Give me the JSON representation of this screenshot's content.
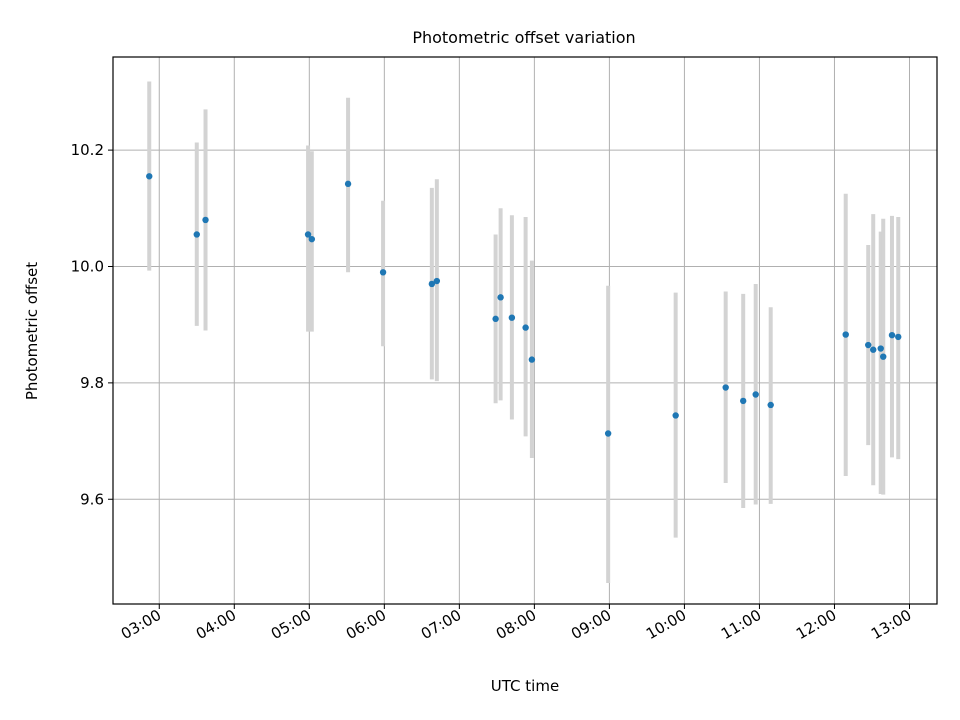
{
  "chart_data": {
    "type": "scatter",
    "title": "Photometric offset variation",
    "xlabel": "UTC time",
    "ylabel": "Photometric offset",
    "x_ticks": [
      "03:00",
      "04:00",
      "05:00",
      "06:00",
      "07:00",
      "08:00",
      "09:00",
      "10:00",
      "11:00",
      "12:00",
      "13:00"
    ],
    "y_ticks": [
      "9.6",
      "9.8",
      "10.0",
      "10.2"
    ],
    "xlim": [
      "02:23",
      "13:22"
    ],
    "ylim": [
      9.42,
      10.36
    ],
    "grid": true,
    "colors": {
      "point": "#1f77b4",
      "errorbar": "#d3d3d3",
      "grid": "#b0b0b0"
    },
    "series": [
      {
        "x": [
          "02:52",
          "03:30",
          "03:37",
          "04:59",
          "05:02",
          "05:31",
          "05:59",
          "06:38",
          "06:42",
          "07:29",
          "07:33",
          "07:42",
          "07:53",
          "07:58",
          "08:59",
          "09:53",
          "10:33",
          "10:47",
          "10:57",
          "11:09",
          "12:09",
          "12:27",
          "12:31",
          "12:37",
          "12:39",
          "12:46",
          "12:51"
        ],
        "y": [
          10.155,
          10.055,
          10.08,
          10.055,
          10.047,
          10.142,
          9.99,
          9.97,
          9.975,
          9.91,
          9.947,
          9.912,
          9.895,
          9.84,
          9.713,
          9.744,
          9.792,
          9.769,
          9.78,
          9.762,
          9.883,
          9.865,
          9.857,
          9.859,
          9.845,
          9.882,
          9.879
        ],
        "err_low": [
          9.993,
          9.898,
          9.89,
          9.888,
          9.888,
          9.99,
          9.863,
          9.806,
          9.803,
          9.765,
          9.77,
          9.737,
          9.708,
          9.671,
          9.456,
          9.534,
          9.628,
          9.585,
          9.591,
          9.592,
          9.64,
          9.693,
          9.624,
          9.609,
          9.608,
          9.672,
          9.669
        ],
        "err_high": [
          10.318,
          10.213,
          10.27,
          10.208,
          10.198,
          10.29,
          10.113,
          10.135,
          10.15,
          10.055,
          10.1,
          10.088,
          10.085,
          10.01,
          9.967,
          9.955,
          9.957,
          9.953,
          9.97,
          9.93,
          10.125,
          10.037,
          10.09,
          10.06,
          10.082,
          10.087,
          10.085
        ]
      }
    ]
  }
}
